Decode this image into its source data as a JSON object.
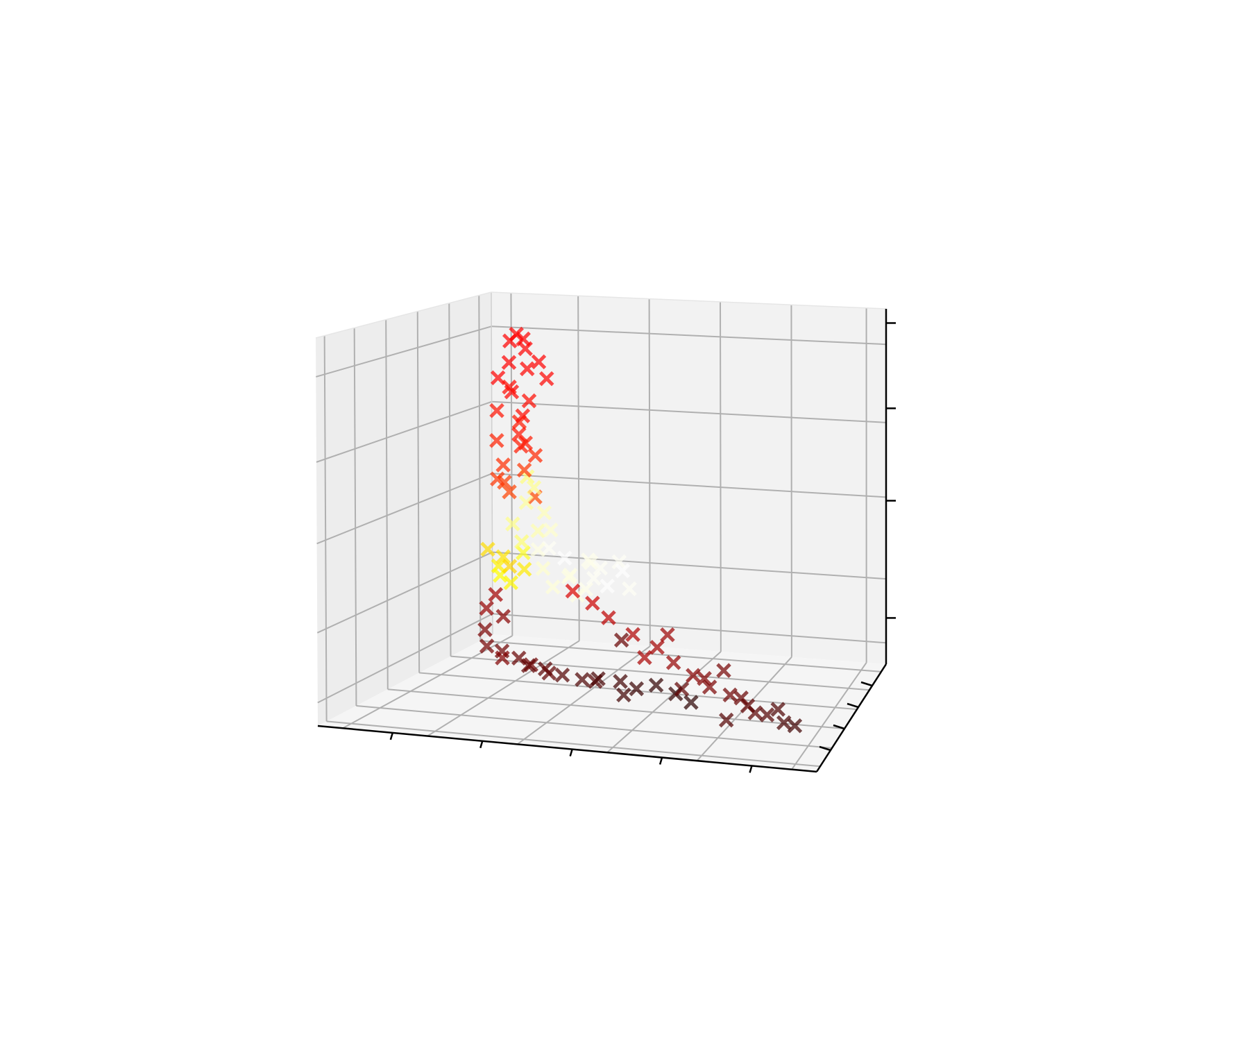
{
  "chart_data": {
    "type": "scatter",
    "projection": "3d",
    "title": "",
    "xlabel": "",
    "ylabel": "",
    "zlabel": "",
    "tick_labels_visible": false,
    "grid": true,
    "legend": "none",
    "marker": "x",
    "marker_opacity": 0.7,
    "colormap": "hot",
    "axes_range": {
      "x": [
        0,
        1
      ],
      "y": [
        0,
        1
      ],
      "z": [
        0,
        1
      ]
    },
    "series": [
      {
        "points": [
          [
            0.3,
            0.35,
            0.95,
            0.35
          ],
          [
            0.33,
            0.3,
            0.94,
            0.36
          ],
          [
            0.27,
            0.4,
            0.93,
            0.34
          ],
          [
            0.31,
            0.38,
            0.91,
            0.35
          ],
          [
            0.29,
            0.33,
            0.88,
            0.36
          ],
          [
            0.32,
            0.36,
            0.86,
            0.37
          ],
          [
            0.26,
            0.35,
            0.84,
            0.36
          ],
          [
            0.3,
            0.3,
            0.82,
            0.38
          ],
          [
            0.28,
            0.38,
            0.8,
            0.37
          ],
          [
            0.33,
            0.34,
            0.78,
            0.38
          ],
          [
            0.35,
            0.4,
            0.83,
            0.37
          ],
          [
            0.27,
            0.31,
            0.76,
            0.39
          ],
          [
            0.31,
            0.36,
            0.74,
            0.38
          ],
          [
            0.29,
            0.4,
            0.72,
            0.4
          ],
          [
            0.32,
            0.3,
            0.7,
            0.39
          ],
          [
            0.26,
            0.34,
            0.68,
            0.41
          ],
          [
            0.3,
            0.38,
            0.66,
            0.4
          ],
          [
            0.34,
            0.35,
            0.64,
            0.42
          ],
          [
            0.28,
            0.32,
            0.62,
            0.43
          ],
          [
            0.31,
            0.37,
            0.6,
            0.44
          ],
          [
            0.27,
            0.36,
            0.57,
            0.45
          ],
          [
            0.29,
            0.33,
            0.55,
            0.46
          ],
          [
            0.33,
            0.38,
            0.53,
            0.47
          ],
          [
            0.36,
            0.31,
            0.88,
            0.36
          ],
          [
            0.34,
            0.28,
            0.68,
            0.4
          ],
          [
            0.28,
            0.28,
            0.59,
            0.44
          ],
          [
            0.32,
            0.35,
            0.52,
            0.9
          ],
          [
            0.35,
            0.38,
            0.49,
            0.93
          ],
          [
            0.3,
            0.32,
            0.47,
            0.88
          ],
          [
            0.37,
            0.36,
            0.45,
            0.95
          ],
          [
            0.33,
            0.4,
            0.44,
            0.92
          ],
          [
            0.31,
            0.35,
            0.42,
            0.86
          ],
          [
            0.36,
            0.3,
            0.41,
            0.97
          ],
          [
            0.34,
            0.34,
            0.56,
            0.89
          ],
          [
            0.31,
            0.39,
            0.58,
            0.87
          ],
          [
            0.36,
            0.38,
            0.4,
            0.99
          ],
          [
            0.4,
            0.36,
            0.38,
            1.0
          ],
          [
            0.44,
            0.4,
            0.37,
            0.98
          ],
          [
            0.48,
            0.35,
            0.36,
            0.99
          ],
          [
            0.52,
            0.38,
            0.35,
            1.0
          ],
          [
            0.42,
            0.32,
            0.34,
            0.97
          ],
          [
            0.46,
            0.37,
            0.33,
            0.99
          ],
          [
            0.5,
            0.33,
            0.32,
            1.0
          ],
          [
            0.38,
            0.34,
            0.31,
            0.96
          ],
          [
            0.44,
            0.38,
            0.3,
            0.98
          ],
          [
            0.54,
            0.36,
            0.31,
            0.99
          ],
          [
            0.4,
            0.4,
            0.33,
            0.97
          ],
          [
            0.47,
            0.31,
            0.38,
            0.98
          ],
          [
            0.35,
            0.37,
            0.35,
            0.95
          ],
          [
            0.51,
            0.39,
            0.37,
            0.99
          ],
          [
            0.43,
            0.35,
            0.29,
            0.97
          ],
          [
            0.27,
            0.35,
            0.38,
            0.7
          ],
          [
            0.25,
            0.38,
            0.35,
            0.72
          ],
          [
            0.29,
            0.33,
            0.36,
            0.68
          ],
          [
            0.26,
            0.36,
            0.33,
            0.74
          ],
          [
            0.3,
            0.4,
            0.34,
            0.71
          ],
          [
            0.24,
            0.34,
            0.4,
            0.69
          ],
          [
            0.28,
            0.37,
            0.31,
            0.73
          ],
          [
            0.31,
            0.36,
            0.39,
            0.78
          ],
          [
            0.25,
            0.36,
            0.28,
            0.2
          ],
          [
            0.24,
            0.33,
            0.25,
            0.18
          ],
          [
            0.26,
            0.38,
            0.22,
            0.16
          ],
          [
            0.23,
            0.35,
            0.19,
            0.14
          ],
          [
            0.25,
            0.3,
            0.16,
            0.13
          ],
          [
            0.27,
            0.34,
            0.14,
            0.12
          ],
          [
            0.3,
            0.36,
            0.12,
            0.11
          ],
          [
            0.33,
            0.33,
            0.11,
            0.1
          ],
          [
            0.36,
            0.35,
            0.1,
            0.09
          ],
          [
            0.4,
            0.34,
            0.09,
            0.08
          ],
          [
            0.44,
            0.35,
            0.08,
            0.07
          ],
          [
            0.48,
            0.33,
            0.09,
            0.06
          ],
          [
            0.52,
            0.36,
            0.08,
            0.05
          ],
          [
            0.56,
            0.34,
            0.07,
            0.04
          ],
          [
            0.6,
            0.35,
            0.08,
            0.03
          ],
          [
            0.28,
            0.31,
            0.13,
            0.15
          ],
          [
            0.32,
            0.38,
            0.1,
            0.12
          ],
          [
            0.38,
            0.31,
            0.1,
            0.1
          ],
          [
            0.46,
            0.38,
            0.07,
            0.08
          ],
          [
            0.54,
            0.31,
            0.06,
            0.05
          ],
          [
            0.64,
            0.36,
            0.06,
            0.03
          ],
          [
            0.68,
            0.33,
            0.05,
            0.02
          ],
          [
            0.42,
            0.35,
            0.3,
            0.28
          ],
          [
            0.46,
            0.36,
            0.27,
            0.26
          ],
          [
            0.5,
            0.34,
            0.24,
            0.24
          ],
          [
            0.55,
            0.35,
            0.2,
            0.22
          ],
          [
            0.6,
            0.36,
            0.17,
            0.2
          ],
          [
            0.64,
            0.34,
            0.14,
            0.18
          ],
          [
            0.68,
            0.35,
            0.11,
            0.16
          ],
          [
            0.72,
            0.33,
            0.09,
            0.14
          ],
          [
            0.76,
            0.35,
            0.07,
            0.12
          ],
          [
            0.8,
            0.34,
            0.05,
            0.1
          ],
          [
            0.84,
            0.35,
            0.03,
            0.08
          ],
          [
            0.58,
            0.33,
            0.15,
            0.21
          ],
          [
            0.7,
            0.37,
            0.1,
            0.15
          ],
          [
            0.78,
            0.37,
            0.06,
            0.11
          ],
          [
            0.82,
            0.32,
            0.04,
            0.09
          ],
          [
            0.66,
            0.33,
            0.08,
            0.1
          ],
          [
            0.74,
            0.38,
            0.12,
            0.13
          ],
          [
            0.86,
            0.37,
            0.04,
            0.07
          ],
          [
            0.88,
            0.33,
            0.02,
            0.06
          ],
          [
            0.62,
            0.37,
            0.2,
            0.19
          ],
          [
            0.52,
            0.37,
            0.18,
            0.11
          ],
          [
            0.76,
            0.31,
            0.02,
            0.08
          ],
          [
            0.9,
            0.35,
            0.01,
            0.05
          ]
        ]
      }
    ],
    "point_format": [
      "x",
      "y",
      "z",
      "color_value"
    ]
  }
}
